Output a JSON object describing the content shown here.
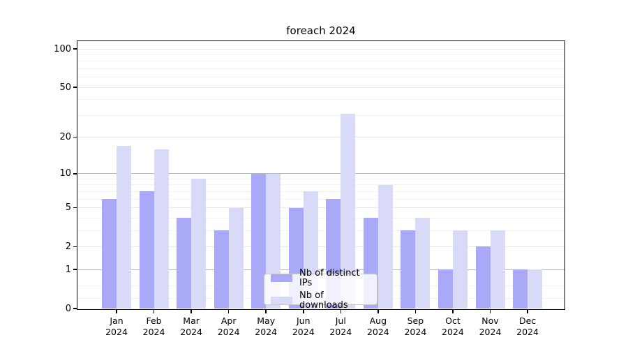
{
  "title": "foreach 2024",
  "chart_data": {
    "type": "bar",
    "title": "foreach 2024",
    "categories": [
      "Jan",
      "Feb",
      "Mar",
      "Apr",
      "May",
      "Jun",
      "Jul",
      "Aug",
      "Sep",
      "Oct",
      "Nov",
      "Dec"
    ],
    "category_year": "2024",
    "series": [
      {
        "name": "Nb of distinct IPs",
        "color": "#a9a9f8",
        "values": [
          6,
          7,
          4,
          3,
          10,
          5,
          6,
          4,
          3,
          1,
          2,
          1
        ]
      },
      {
        "name": "Nb of downloads",
        "color": "#d9d9f8",
        "values": [
          17,
          16,
          9,
          5,
          10,
          7,
          31,
          8,
          4,
          3,
          3,
          1
        ]
      }
    ],
    "y_scale": "log1p",
    "ylim": [
      0,
      115
    ],
    "y_ticks": [
      0,
      1,
      2,
      5,
      10,
      20,
      50,
      100
    ],
    "y_minor_gridlines": [
      0.2,
      0.5,
      3,
      4,
      6,
      7,
      8,
      9,
      30,
      40,
      60,
      70,
      80,
      90
    ],
    "decade_gridlines": [
      1,
      10
    ],
    "grid": true,
    "legend_position": "bottom-center",
    "colors": {
      "background": "#ffffff",
      "axis": "#000000",
      "grid_major": "#e7e7e7",
      "grid_minor": "#f2f2f2",
      "grid_decade": "#b6b6c0"
    }
  }
}
